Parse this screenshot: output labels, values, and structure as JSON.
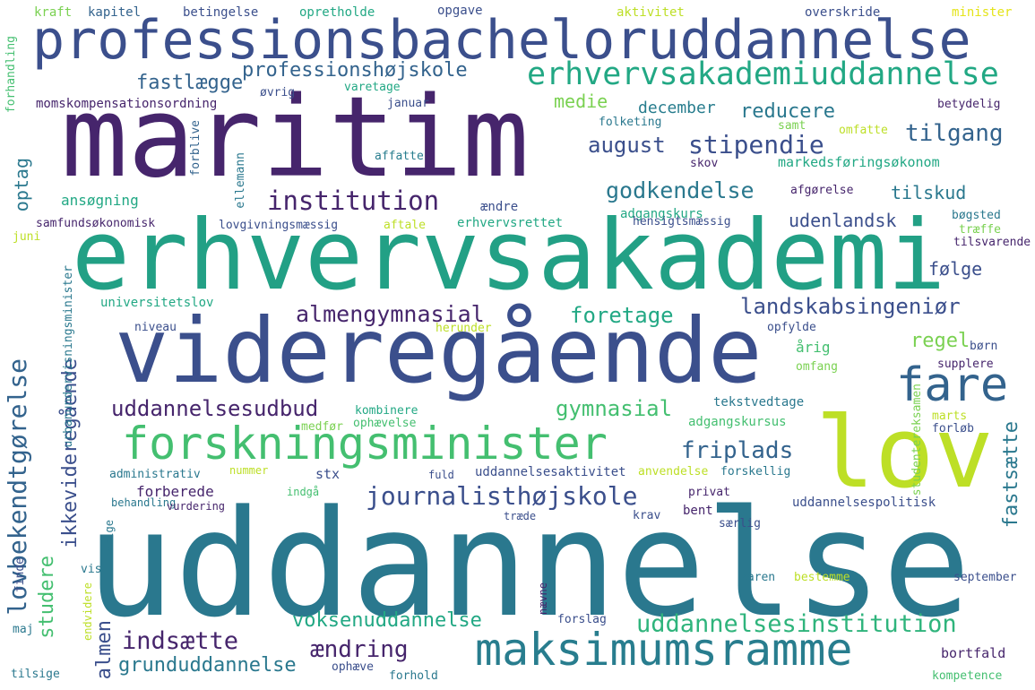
{
  "palette": {
    "background": "#ffffff",
    "dark_purple": "#46256c",
    "indigo": "#3b4f8c",
    "blue": "#33638d",
    "teal": "#287d8e",
    "green_teal": "#22a884",
    "green": "#44bf70",
    "light_green": "#7ad151",
    "yellow_green": "#bddf26",
    "yellow": "#e4e419"
  },
  "words": [
    "uddannelse",
    "maritim",
    "erhvervsakademi",
    "videregående",
    "professionsbacheloruddannelse",
    "lov",
    "forskningsminister",
    "maksimumsramme",
    "erhvervsakademiuddannelse",
    "fare",
    "institution",
    "journalisthøjskole",
    "lovbekendtgørelse",
    "uddannelsesinstitution",
    "professionshøjskole",
    "fastlægge",
    "stipendie",
    "godkendelse",
    "tilgang",
    "almengymnasial",
    "foretage",
    "landskabsingeniør",
    "uddannelsesudbud",
    "gymnasial",
    "friplads",
    "indsætte",
    "ændring",
    "voksenuddannelse",
    "grunduddannelse",
    "ikkevideregående",
    "fastsætte",
    "august",
    "reducere",
    "december",
    "medie",
    "optag",
    "studere",
    "almen",
    "regel",
    "følge",
    "tilskud",
    "udenlandsk",
    "kraft",
    "kapitel",
    "betingelse",
    "opretholde",
    "opgave",
    "aktivitet",
    "overskride",
    "minister",
    "forhandling",
    "momskompensationsordning",
    "øvrig",
    "varetage",
    "januar",
    "folketing",
    "samt",
    "omfatte",
    "betydelig",
    "forblive",
    "ellemann",
    "affatte",
    "skov",
    "markedsføringsøkonom",
    "ansøgning",
    "ændre",
    "afgørelse",
    "adgangskurs",
    "samfundsøkonomisk",
    "lovgivningsmæssig",
    "aftale",
    "erhvervsrettet",
    "hensigtsmæssig",
    "bøgsted",
    "træffe",
    "juni",
    "tilsvarende",
    "universitetslov",
    "urbanundervisningsminister",
    "niveau",
    "herunder",
    "opfylde",
    "årig",
    "børn",
    "supplere",
    "omfang",
    "tekstvedtage",
    "kombinere",
    "adgangskursus",
    "marts",
    "medfør",
    "ophævelse",
    "studentereksamen",
    "forløb",
    "administrativ",
    "nummer",
    "stx",
    "fuld",
    "uddannelsesaktivitet",
    "anvendelse",
    "forskellig",
    "forberede",
    "indgå",
    "privat",
    "bent",
    "uddannelsespolitisk",
    "behandling",
    "vurdering",
    "krav",
    "særlig",
    "udvælge",
    "træde",
    "vis",
    "finde",
    "karen",
    "bestemme",
    "september",
    "nævne",
    "endvidere",
    "forslag",
    "maj",
    "bortfald",
    "ophæve",
    "forhold",
    "tilsige",
    "kompetence"
  ]
}
